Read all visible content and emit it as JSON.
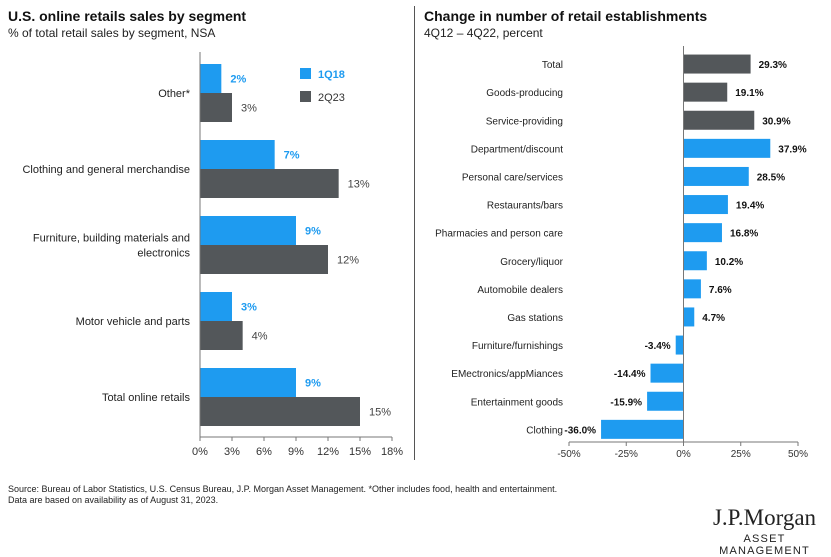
{
  "colors": {
    "series_1q18": "#1e9bf0",
    "series_2q23": "#53575a",
    "change": [
      "#53575a",
      "#1e9bf0"
    ]
  },
  "chart_data": [
    {
      "type": "bar",
      "orientation": "horizontal",
      "title": "U.S. online retails sales by segment",
      "subtitle": "% of total retail sales by segment, NSA",
      "categories": [
        "Other*",
        "Clothing and general merchandise",
        "Furniture, building materials and electronics",
        "Motor vehicle and parts",
        "Total online retails"
      ],
      "series": [
        {
          "name": "1Q18",
          "values": [
            2,
            7,
            9,
            3,
            9
          ],
          "labels": [
            "2%",
            "7%",
            "9%",
            "3%",
            "9%"
          ]
        },
        {
          "name": "2Q23",
          "values": [
            3,
            13,
            12,
            4,
            15
          ],
          "labels": [
            "3%",
            "13%",
            "12%",
            "4%",
            "15%"
          ]
        }
      ],
      "xlim": [
        0,
        18
      ],
      "xticks": [
        "0%",
        "3%",
        "6%",
        "9%",
        "12%",
        "15%",
        "18%"
      ],
      "legend": "top-right",
      "grid": false
    },
    {
      "type": "bar",
      "orientation": "horizontal",
      "title": "Change in number of retail establishments",
      "subtitle": "4Q12 – 4Q22, percent",
      "categories": [
        "Total",
        "Goods-producing",
        "Service-providing",
        "Department/discount",
        "Personal care/services",
        "Restaurants/bars",
        "Pharmacies and person care",
        "Grocery/liquor",
        "Automobile dealers",
        "Gas stations",
        "Furniture/furnishings",
        "EMectronics/appMiances",
        "Entertainment goods",
        "Clothing"
      ],
      "values": [
        29.3,
        19.1,
        30.9,
        37.9,
        28.5,
        19.4,
        16.8,
        10.2,
        7.6,
        4.7,
        -3.4,
        -14.4,
        -15.9,
        -36.0
      ],
      "labels": [
        "29.3%",
        "19.1%",
        "30.9%",
        "37.9%",
        "28.5%",
        "19.4%",
        "16.8%",
        "10.2%",
        "7.6%",
        "4.7%",
        "-3.4%",
        "-14.4%",
        "-15.9%",
        "-36.0%"
      ],
      "color_group": [
        0,
        0,
        0,
        1,
        1,
        1,
        1,
        1,
        1,
        1,
        1,
        1,
        1,
        1
      ],
      "xlim": [
        -50,
        50
      ],
      "xticks": [
        "-50%",
        "-25%",
        "0%",
        "25%",
        "50%"
      ],
      "grid": false
    }
  ],
  "footnotes": {
    "line1": "Source: Bureau of Labor Statistics, U.S. Census Bureau, J.P. Morgan Asset Management. *Other includes food, health and entertainment.",
    "line2": "Data are based on availability as of August 31, 2023."
  },
  "logo": {
    "name": "J.P.Morgan",
    "sub": "ASSET MANAGEMENT"
  }
}
